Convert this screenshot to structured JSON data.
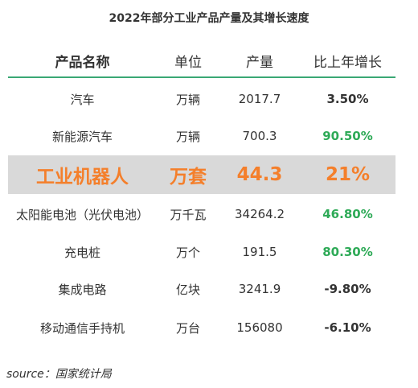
{
  "title": "2022年部分工业产品产量及其增长速度",
  "header": {
    "name": "产品名称",
    "unit": "单位",
    "output": "产量",
    "growth": "比上年增长"
  },
  "rows": [
    {
      "name": "汽车",
      "unit": "万辆",
      "output": "2017.7",
      "growth": "3.50%",
      "growth_color": "#333333"
    },
    {
      "name": "新能源汽车",
      "unit": "万辆",
      "output": "700.3",
      "growth": "90.50%",
      "growth_color": "#2eaa57"
    },
    {
      "name": "工业机器人",
      "unit": "万套",
      "output": "44.3",
      "growth": "21%",
      "growth_color": "#f47f2b",
      "highlight": true
    },
    {
      "name": "太阳能电池（光伏电池）",
      "unit": "万千瓦",
      "output": "34264.2",
      "growth": "46.80%",
      "growth_color": "#2eaa57"
    },
    {
      "name": "充电桩",
      "unit": "万个",
      "output": "191.5",
      "growth": "80.30%",
      "growth_color": "#2eaa57"
    },
    {
      "name": "集成电路",
      "unit": "亿块",
      "output": "3241.9",
      "growth": "-9.80%",
      "growth_color": "#333333"
    },
    {
      "name": "移动通信手持机",
      "unit": "万台",
      "output": "156080",
      "growth": "-6.10%",
      "growth_color": "#333333"
    }
  ],
  "source": "source：国家统计局",
  "colors": {
    "accent_line": "#3aa874",
    "highlight_bg": "#d9d9d9",
    "highlight_text": "#f47f2b",
    "positive_green": "#2eaa57"
  }
}
